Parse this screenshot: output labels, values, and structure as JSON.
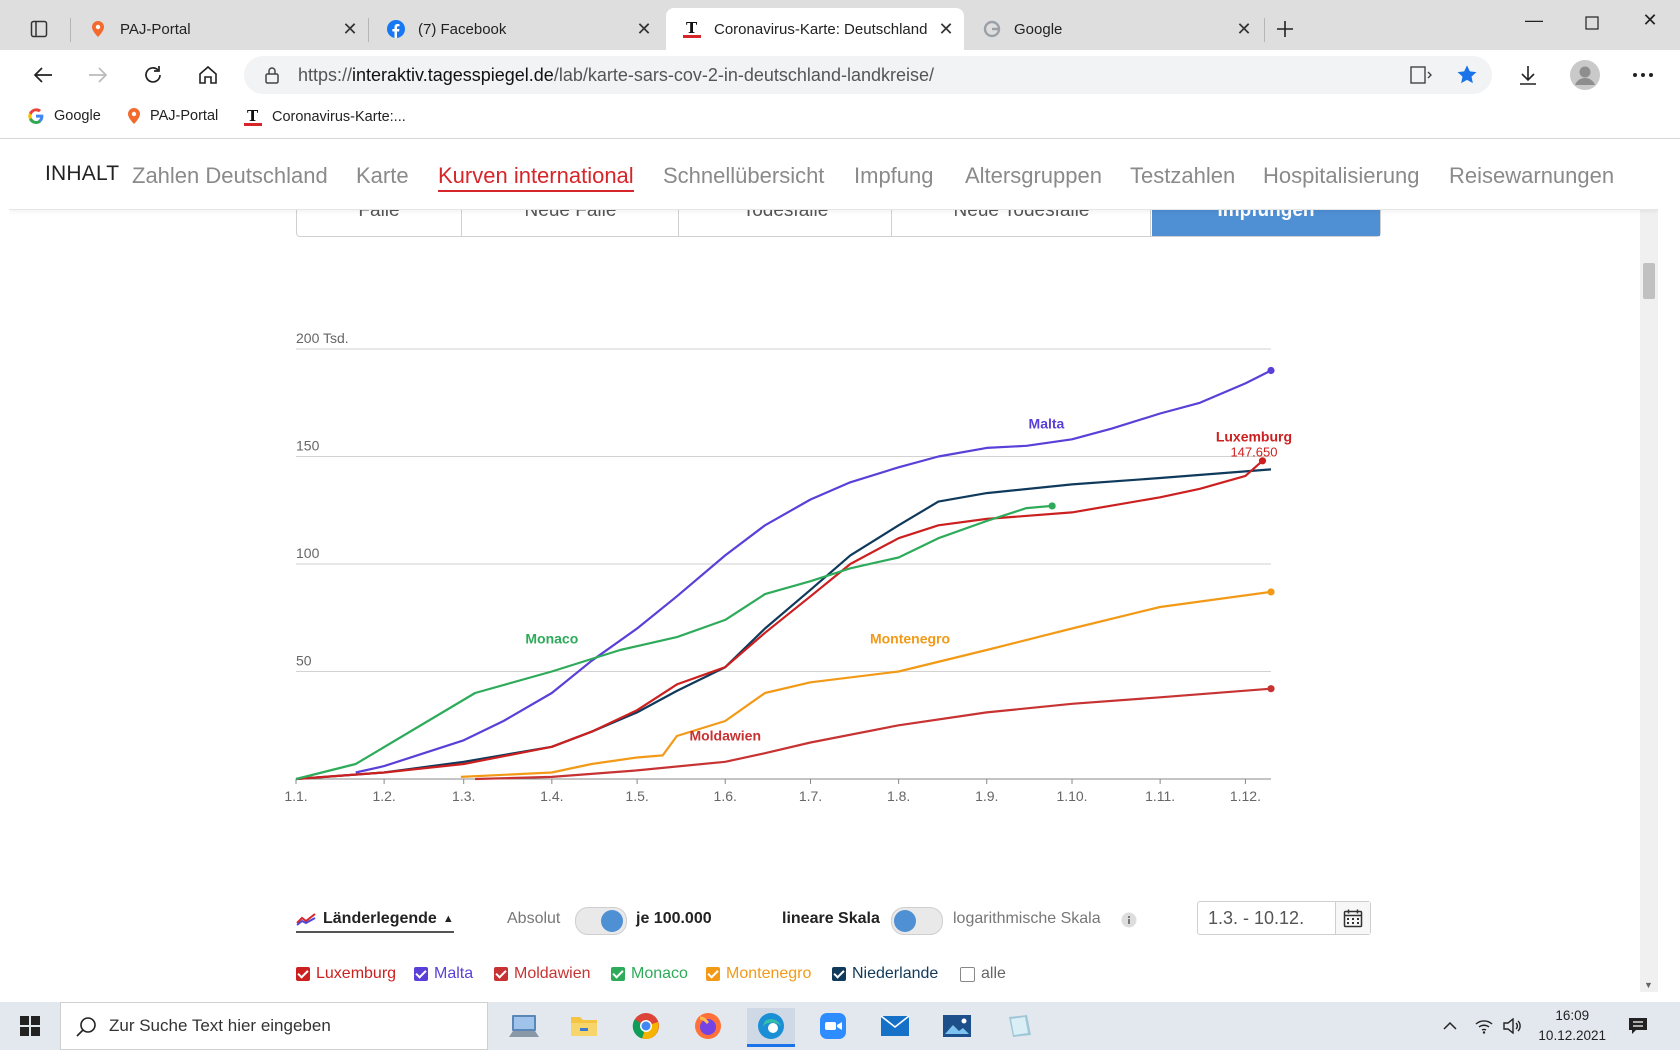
{
  "browser": {
    "tabs": [
      {
        "title": "PAJ-Portal",
        "icon": "location-pin-icon"
      },
      {
        "title": "(7) Facebook",
        "icon": "facebook-icon"
      },
      {
        "title": "Coronavirus-Karte: Deutschland",
        "icon": "tagesspiegel-icon"
      },
      {
        "title": "Google",
        "icon": "google-icon"
      }
    ],
    "url_scheme": "https://",
    "url_host": "interaktiv.tagesspiegel.de",
    "url_path": "/lab/karte-sars-cov-2-in-deutschland-landkreise/",
    "bookmarks": [
      {
        "label": "Google",
        "icon": "google-icon"
      },
      {
        "label": "PAJ-Portal",
        "icon": "location-pin-icon"
      },
      {
        "label": "Coronavirus-Karte:...",
        "icon": "tagesspiegel-icon"
      }
    ]
  },
  "site": {
    "nav_label": "INHALT",
    "nav_items": [
      "Zahlen Deutschland",
      "Karte",
      "Kurven international",
      "Schnellübersicht",
      "Impfung",
      "Altersgruppen",
      "Testzahlen",
      "Hospitalisierung",
      "Reisewarnungen"
    ],
    "nav_active": "Kurven international",
    "metric_tabs": [
      "Fälle",
      "Neue Fälle",
      "Todesfälle",
      "Neue Todesfälle",
      "Impfungen"
    ],
    "metric_active": "Impfungen"
  },
  "controls": {
    "legend_label": "Länderlegende",
    "absolute_label": "Absolut",
    "per100k_label": "je 100.000",
    "linear_label": "lineare Skala",
    "log_label": "logarithmische Skala",
    "date_range": "1.3. - 10.12.",
    "countries": [
      {
        "name": "Luxemburg",
        "checked": true,
        "color": "#cc1f1f"
      },
      {
        "name": "Malta",
        "checked": true,
        "color": "#5a3fd8"
      },
      {
        "name": "Moldawien",
        "checked": true,
        "color": "#c73232"
      },
      {
        "name": "Monaco",
        "checked": true,
        "color": "#2eab5a"
      },
      {
        "name": "Montenegro",
        "checked": true,
        "color": "#f29a17"
      },
      {
        "name": "Niederlande",
        "checked": true,
        "color": "#0f3a5c"
      },
      {
        "name": "alle",
        "checked": false,
        "color": "#888888"
      }
    ]
  },
  "chart_data": {
    "type": "line",
    "title": "",
    "xlabel": "",
    "ylabel": "",
    "x_ticks": [
      "1.1.",
      "1.2.",
      "1.3.",
      "1.4.",
      "1.5.",
      "1.6.",
      "1.7.",
      "1.8.",
      "1.9.",
      "1.10.",
      "1.11.",
      "1.12."
    ],
    "y_ticks": [
      50,
      100,
      150,
      200
    ],
    "y_tick_labels": [
      "50",
      "100",
      "150",
      "200 Tsd."
    ],
    "ylim": [
      0,
      200
    ],
    "x_domain": [
      "2021-01-01",
      "2021-12-10"
    ],
    "grid": true,
    "series": [
      {
        "name": "Malta",
        "color": "#5a3fd8",
        "end_marker": true,
        "points": [
          [
            "2021-01-22",
            3
          ],
          [
            "2021-02-01",
            6
          ],
          [
            "2021-02-15",
            12
          ],
          [
            "2021-03-01",
            18
          ],
          [
            "2021-03-15",
            27
          ],
          [
            "2021-04-01",
            40
          ],
          [
            "2021-04-15",
            55
          ],
          [
            "2021-05-01",
            70
          ],
          [
            "2021-05-15",
            85
          ],
          [
            "2021-06-01",
            104
          ],
          [
            "2021-06-15",
            118
          ],
          [
            "2021-07-01",
            130
          ],
          [
            "2021-07-15",
            138
          ],
          [
            "2021-08-01",
            145
          ],
          [
            "2021-08-15",
            150
          ],
          [
            "2021-09-01",
            154
          ],
          [
            "2021-09-15",
            155
          ],
          [
            "2021-10-01",
            158
          ],
          [
            "2021-10-15",
            163
          ],
          [
            "2021-11-01",
            170
          ],
          [
            "2021-11-15",
            175
          ],
          [
            "2021-12-01",
            184
          ],
          [
            "2021-12-10",
            190
          ]
        ]
      },
      {
        "name": "Niederlande",
        "color": "#0f3a5c",
        "end_marker": false,
        "points": [
          [
            "2021-01-01",
            0
          ],
          [
            "2021-02-01",
            3
          ],
          [
            "2021-03-01",
            8
          ],
          [
            "2021-04-01",
            15
          ],
          [
            "2021-04-15",
            22
          ],
          [
            "2021-05-01",
            31
          ],
          [
            "2021-05-15",
            41
          ],
          [
            "2021-06-01",
            52
          ],
          [
            "2021-06-15",
            70
          ],
          [
            "2021-07-01",
            88
          ],
          [
            "2021-07-15",
            104
          ],
          [
            "2021-08-01",
            118
          ],
          [
            "2021-08-15",
            129
          ],
          [
            "2021-09-01",
            133
          ],
          [
            "2021-10-01",
            137
          ],
          [
            "2021-11-01",
            140
          ],
          [
            "2021-12-10",
            144
          ]
        ]
      },
      {
        "name": "Luxemburg",
        "color": "#cc1f1f",
        "end_marker": true,
        "value_label": "147.650",
        "points": [
          [
            "2021-01-01",
            0
          ],
          [
            "2021-02-01",
            3
          ],
          [
            "2021-03-01",
            7
          ],
          [
            "2021-04-01",
            15
          ],
          [
            "2021-04-15",
            22
          ],
          [
            "2021-05-01",
            32
          ],
          [
            "2021-05-15",
            44
          ],
          [
            "2021-06-01",
            52
          ],
          [
            "2021-06-15",
            68
          ],
          [
            "2021-07-01",
            85
          ],
          [
            "2021-07-15",
            100
          ],
          [
            "2021-08-01",
            112
          ],
          [
            "2021-08-15",
            118
          ],
          [
            "2021-09-01",
            121
          ],
          [
            "2021-10-01",
            124
          ],
          [
            "2021-11-01",
            131
          ],
          [
            "2021-11-15",
            135
          ],
          [
            "2021-12-01",
            141
          ],
          [
            "2021-12-07",
            148
          ]
        ]
      },
      {
        "name": "Monaco",
        "color": "#2eab5a",
        "end_marker": true,
        "points": [
          [
            "2021-01-01",
            0
          ],
          [
            "2021-01-22",
            7
          ],
          [
            "2021-03-05",
            40
          ],
          [
            "2021-04-01",
            50
          ],
          [
            "2021-04-25",
            60
          ],
          [
            "2021-05-15",
            66
          ],
          [
            "2021-06-01",
            74
          ],
          [
            "2021-06-15",
            86
          ],
          [
            "2021-07-01",
            92
          ],
          [
            "2021-07-15",
            98
          ],
          [
            "2021-08-01",
            103
          ],
          [
            "2021-08-15",
            112
          ],
          [
            "2021-09-01",
            120
          ],
          [
            "2021-09-15",
            126
          ],
          [
            "2021-09-24",
            127
          ]
        ]
      },
      {
        "name": "Montenegro",
        "color": "#f29a17",
        "end_marker": true,
        "points": [
          [
            "2021-02-28",
            1
          ],
          [
            "2021-04-01",
            3
          ],
          [
            "2021-04-15",
            7
          ],
          [
            "2021-05-01",
            10
          ],
          [
            "2021-05-10",
            11
          ],
          [
            "2021-05-15",
            20
          ],
          [
            "2021-06-01",
            27
          ],
          [
            "2021-06-15",
            40
          ],
          [
            "2021-07-01",
            45
          ],
          [
            "2021-08-01",
            50
          ],
          [
            "2021-09-01",
            60
          ],
          [
            "2021-10-01",
            70
          ],
          [
            "2021-11-01",
            80
          ],
          [
            "2021-12-10",
            87
          ]
        ]
      },
      {
        "name": "Moldawien",
        "color": "#c73232",
        "end_marker": true,
        "points": [
          [
            "2021-03-05",
            0
          ],
          [
            "2021-04-01",
            1
          ],
          [
            "2021-05-01",
            4
          ],
          [
            "2021-06-01",
            8
          ],
          [
            "2021-06-15",
            12
          ],
          [
            "2021-07-01",
            17
          ],
          [
            "2021-08-01",
            25
          ],
          [
            "2021-09-01",
            31
          ],
          [
            "2021-10-01",
            35
          ],
          [
            "2021-11-01",
            38
          ],
          [
            "2021-12-10",
            42
          ]
        ]
      }
    ],
    "annotations": [
      {
        "text": "Malta",
        "color": "#5a3fd8",
        "at": [
          "2021-09-22",
          163
        ]
      },
      {
        "text": "Luxemburg",
        "color": "#cc1f1f",
        "at": [
          "2021-12-04",
          157
        ]
      },
      {
        "text": "Monaco",
        "color": "#2eab5a",
        "at": [
          "2021-04-01",
          63
        ]
      },
      {
        "text": "Montenegro",
        "color": "#f29a17",
        "at": [
          "2021-08-05",
          63
        ]
      },
      {
        "text": "Moldawien",
        "color": "#c73232",
        "at": [
          "2021-06-01",
          18
        ]
      }
    ]
  },
  "taskbar": {
    "search_placeholder": "Zur Suche Text hier eingeben",
    "time": "16:09",
    "date": "10.12.2021"
  }
}
